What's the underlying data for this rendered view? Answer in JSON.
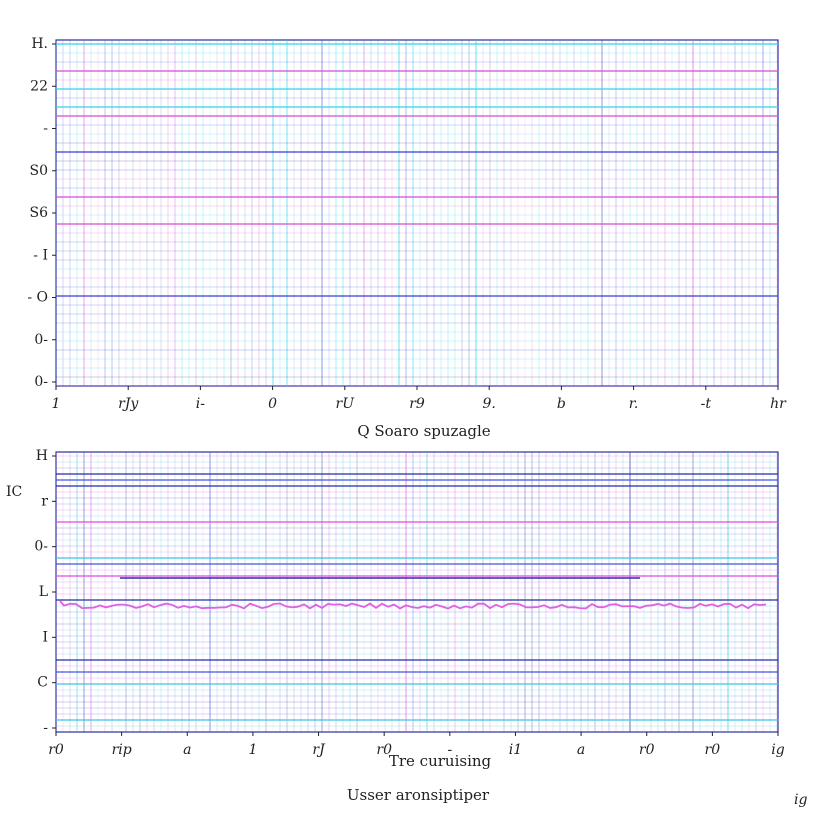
{
  "chart_data": [
    {
      "type": "line",
      "title": "",
      "xlabel": "Q Soaro spuzagle",
      "ylabel": "",
      "x_ticks": [
        "1",
        "rJy",
        "i-",
        "0",
        "rU",
        "r9",
        "9.",
        "b",
        "r.",
        "-t",
        "hr"
      ],
      "y_ticks": [
        "H.",
        "22",
        "-",
        "S0",
        "S6",
        "- I",
        "- O",
        "0-",
        "0-"
      ],
      "grid": true,
      "stroke_colors": [
        "#3b3fd8",
        "#35d6ea",
        "#d94fd4",
        "#1d2ba6"
      ],
      "series": []
    },
    {
      "type": "line",
      "title": "",
      "xlabel": "Tre curuising",
      "ylabel": "",
      "x_ticks": [
        "r0",
        "rip",
        "a",
        "1",
        "rJ",
        "r0",
        "-",
        "i1",
        "a",
        "r0",
        "r0",
        "ig"
      ],
      "y_ticks": [
        "H",
        "r",
        "0-",
        "L",
        "I",
        "C",
        "-"
      ],
      "grid": true,
      "stroke_colors": [
        "#4a57e0",
        "#e14ee0",
        "#3fc4e8",
        "#2631a8"
      ],
      "series": []
    }
  ],
  "footer": {
    "label": "Usser aronsiptiper",
    "corner_mark": "ig",
    "side_mark": "IC"
  }
}
